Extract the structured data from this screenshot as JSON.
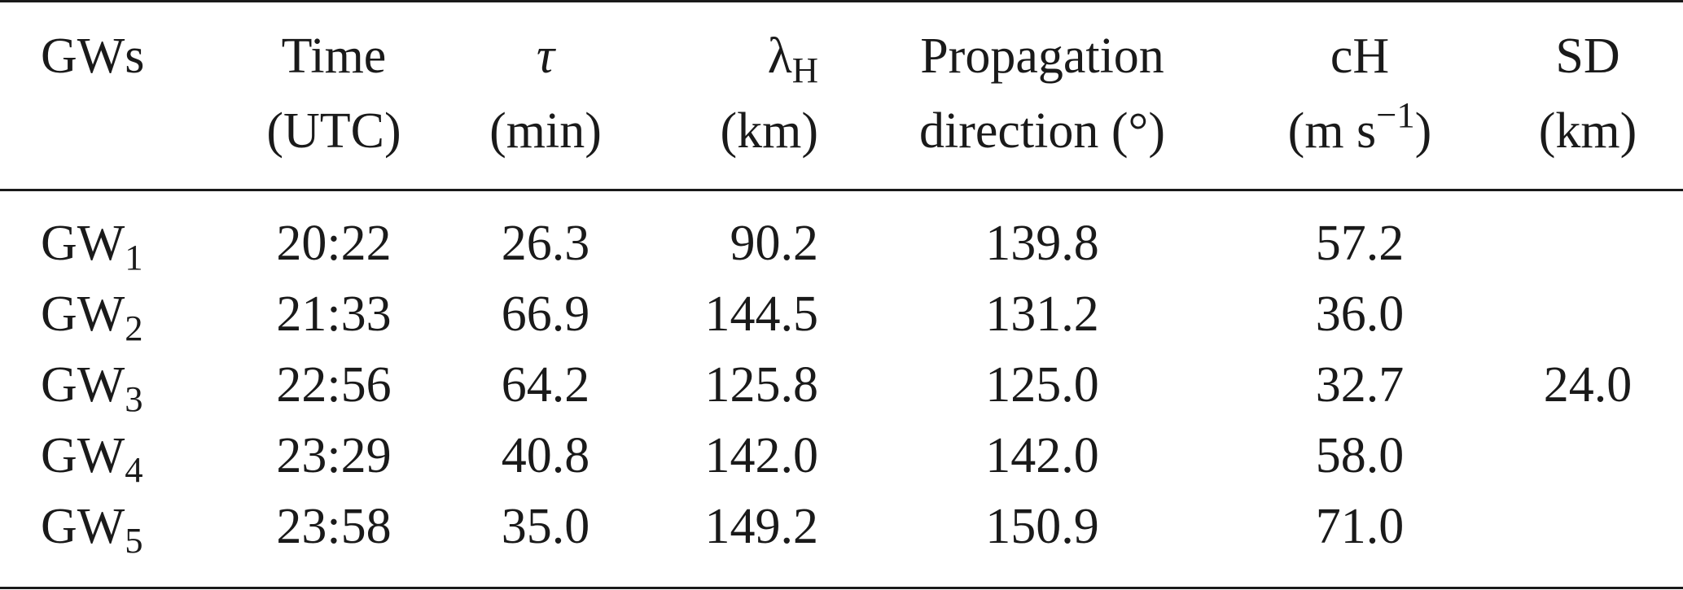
{
  "columns": {
    "gws": {
      "line1": "GWs"
    },
    "time": {
      "line1": "Time",
      "line2": "(UTC)"
    },
    "tau": {
      "line1": "τ",
      "line2": "(min)"
    },
    "lambda": {
      "base": "λ",
      "sub": "H",
      "line2": "(km)"
    },
    "direction": {
      "line1": "Propagation",
      "line2": "direction (°)"
    },
    "ch": {
      "line1": "cH",
      "line2_pre": "(m s",
      "line2_sup": "−1",
      "line2_post": ")"
    },
    "sd": {
      "line1": "SD",
      "line2": "(km)"
    }
  },
  "rows": [
    {
      "gw_base": "GW",
      "gw_sub": "1",
      "time": "20:22",
      "tau": "26.3",
      "lambda": "90.2",
      "direction": "139.8",
      "ch": "57.2"
    },
    {
      "gw_base": "GW",
      "gw_sub": "2",
      "time": "21:33",
      "tau": "66.9",
      "lambda": "144.5",
      "direction": "131.2",
      "ch": "36.0"
    },
    {
      "gw_base": "GW",
      "gw_sub": "3",
      "time": "22:56",
      "tau": "64.2",
      "lambda": "125.8",
      "direction": "125.0",
      "ch": "32.7"
    },
    {
      "gw_base": "GW",
      "gw_sub": "4",
      "time": "23:29",
      "tau": "40.8",
      "lambda": "142.0",
      "direction": "142.0",
      "ch": "58.0"
    },
    {
      "gw_base": "GW",
      "gw_sub": "5",
      "time": "23:58",
      "tau": "35.0",
      "lambda": "149.2",
      "direction": "150.9",
      "ch": "71.0"
    }
  ],
  "sd_value": "24.0"
}
